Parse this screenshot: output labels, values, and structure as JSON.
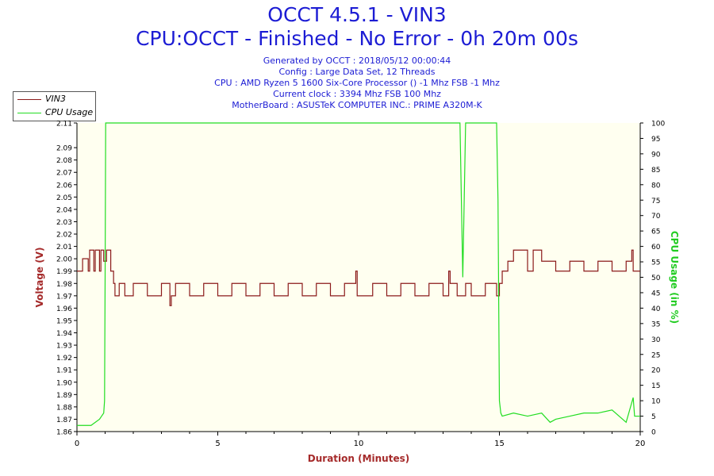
{
  "header": {
    "title": "OCCT 4.5.1 - VIN3",
    "subtitle": "CPU:OCCT - Finished - No Error - 0h 20m 00s",
    "info_lines": [
      "Generated by OCCT : 2018/05/12 00:00:44",
      "Config : Large Data Set, 12 Threads",
      "CPU : AMD Ryzen 5 1600 Six-Core Processor () -1 Mhz FSB -1 Mhz",
      "Current clock : 3394 Mhz FSB 100 Mhz",
      "MotherBoard : ASUSTeK COMPUTER INC.: PRIME A320M-K"
    ]
  },
  "legend": {
    "vin3_label": "VIN3",
    "cpu_label": "CPU Usage"
  },
  "colors": {
    "vin3": "#8b1a1a",
    "cpu": "#22dd22",
    "plot_bg": "#fffff0",
    "title": "#1c1cd4",
    "left_axis": "#a52a2a",
    "right_axis": "#22cc22"
  },
  "chart_data": {
    "type": "line",
    "xlabel": "Duration (Minutes)",
    "ylabel": "Voltage (V)",
    "y2label": "CPU Usage (in %)",
    "xlim": [
      0,
      20
    ],
    "ylim": [
      1.86,
      2.11
    ],
    "y2lim": [
      0,
      100
    ],
    "xticks": [
      0,
      5,
      10,
      15,
      20
    ],
    "yticks": [
      "1.86",
      "1.87",
      "1.88",
      "1.89",
      "1.90",
      "1.91",
      "1.92",
      "1.93",
      "1.94",
      "1.95",
      "1.96",
      "1.97",
      "1.98",
      "1.99",
      "2.00",
      "2.01",
      "2.02",
      "2.03",
      "2.04",
      "2.05",
      "2.06",
      "2.07",
      "2.08",
      "2.09",
      "2.11"
    ],
    "y2ticks": [
      "0",
      "5",
      "10",
      "15",
      "20",
      "25",
      "30",
      "35",
      "40",
      "45",
      "50",
      "55",
      "60",
      "65",
      "70",
      "75",
      "80",
      "85",
      "90",
      "95",
      "100"
    ],
    "grid": false,
    "legend_position": "top-left",
    "series": [
      {
        "name": "VIN3",
        "axis": "left",
        "x": [
          0,
          0.2,
          0.4,
          0.45,
          0.6,
          0.65,
          0.8,
          0.85,
          0.95,
          1.05,
          1.2,
          1.3,
          1.35,
          1.5,
          1.6,
          1.7,
          2.0,
          2.5,
          3.0,
          3.3,
          3.35,
          3.5,
          4.0,
          4.5,
          5.0,
          5.5,
          6.0,
          6.5,
          7.0,
          7.5,
          8.0,
          8.5,
          9.0,
          9.5,
          9.9,
          9.95,
          10.5,
          11.0,
          11.5,
          12.0,
          12.5,
          13.0,
          13.2,
          13.25,
          13.5,
          13.8,
          14.0,
          14.5,
          14.9,
          15.0,
          15.1,
          15.3,
          15.5,
          16.0,
          16.2,
          16.5,
          17.0,
          17.5,
          18.0,
          18.5,
          19.0,
          19.5,
          19.7,
          19.75,
          20.0
        ],
        "y": [
          1.99,
          2.0,
          1.99,
          2.007,
          1.99,
          2.007,
          1.99,
          2.007,
          1.998,
          2.007,
          1.99,
          1.98,
          1.97,
          1.98,
          1.98,
          1.97,
          1.98,
          1.97,
          1.98,
          1.962,
          1.97,
          1.98,
          1.97,
          1.98,
          1.97,
          1.98,
          1.97,
          1.98,
          1.97,
          1.98,
          1.97,
          1.98,
          1.97,
          1.98,
          1.99,
          1.97,
          1.98,
          1.97,
          1.98,
          1.97,
          1.98,
          1.97,
          1.99,
          1.98,
          1.97,
          1.98,
          1.97,
          1.98,
          1.97,
          1.98,
          1.99,
          1.998,
          2.007,
          1.99,
          2.007,
          1.998,
          1.99,
          1.998,
          1.99,
          1.998,
          1.99,
          1.998,
          2.007,
          1.99,
          1.99
        ]
      },
      {
        "name": "CPU Usage",
        "axis": "right",
        "x": [
          0,
          0.5,
          0.8,
          0.95,
          0.98,
          1.0,
          1.02,
          1.05,
          13.6,
          13.65,
          13.7,
          13.75,
          13.8,
          14.9,
          14.95,
          15.0,
          15.05,
          15.1,
          15.5,
          16.0,
          16.5,
          16.8,
          17.0,
          17.5,
          18.0,
          18.5,
          19.0,
          19.5,
          19.75,
          19.8,
          20.0
        ],
        "y": [
          2,
          2,
          4,
          6,
          10,
          50,
          100,
          100,
          100,
          75,
          50,
          75,
          100,
          100,
          75,
          10,
          6,
          5,
          6,
          5,
          6,
          3,
          4,
          5,
          6,
          6,
          7,
          3,
          11,
          5,
          5
        ]
      }
    ]
  }
}
